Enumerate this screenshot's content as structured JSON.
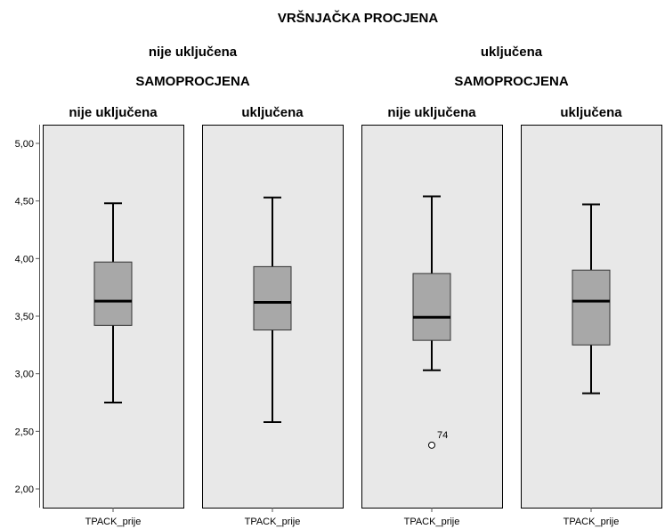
{
  "chart_data": {
    "type": "boxplot",
    "title": "VRŠNJAČKA PROCJENA",
    "outer_facet": {
      "title": "VRŠNJAČKA PROCJENA",
      "levels": [
        "nije uključena",
        "uključena"
      ]
    },
    "inner_facet": {
      "title": "SAMOPROCJENA",
      "levels": [
        "nije uključena",
        "uključena"
      ]
    },
    "ylim": [
      1.85,
      5.1
    ],
    "y_ticks": [
      "5,00",
      "4,50",
      "4,00",
      "3,50",
      "3,00",
      "2,50",
      "2,00"
    ],
    "y_tick_values": [
      5.0,
      4.5,
      4.0,
      3.5,
      3.0,
      2.5,
      2.0
    ],
    "colors": {
      "panel_bg": "#e8e8e8",
      "box_fill": "#a8a8a8",
      "stroke": "#000000",
      "axis": "#555555"
    },
    "panels": [
      {
        "outer": 0,
        "inner_label": "nije uključena",
        "x_label": "TPACK_prije",
        "min": 2.75,
        "q1": 3.42,
        "median": 3.63,
        "q3": 3.97,
        "max": 4.48,
        "outliers": []
      },
      {
        "outer": 0,
        "inner_label": "uključena",
        "x_label": "TPACK_prije",
        "min": 2.58,
        "q1": 3.38,
        "median": 3.62,
        "q3": 3.93,
        "max": 4.53,
        "outliers": []
      },
      {
        "outer": 1,
        "inner_label": "nije uključena",
        "x_label": "TPACK_prije",
        "min": 3.03,
        "q1": 3.29,
        "median": 3.49,
        "q3": 3.87,
        "max": 4.54,
        "outliers": [
          {
            "value": 2.38,
            "label": "74"
          }
        ]
      },
      {
        "outer": 1,
        "inner_label": "uključena",
        "x_label": "TPACK_prije",
        "min": 2.83,
        "q1": 3.25,
        "median": 3.63,
        "q3": 3.9,
        "max": 4.47,
        "outliers": []
      }
    ]
  }
}
